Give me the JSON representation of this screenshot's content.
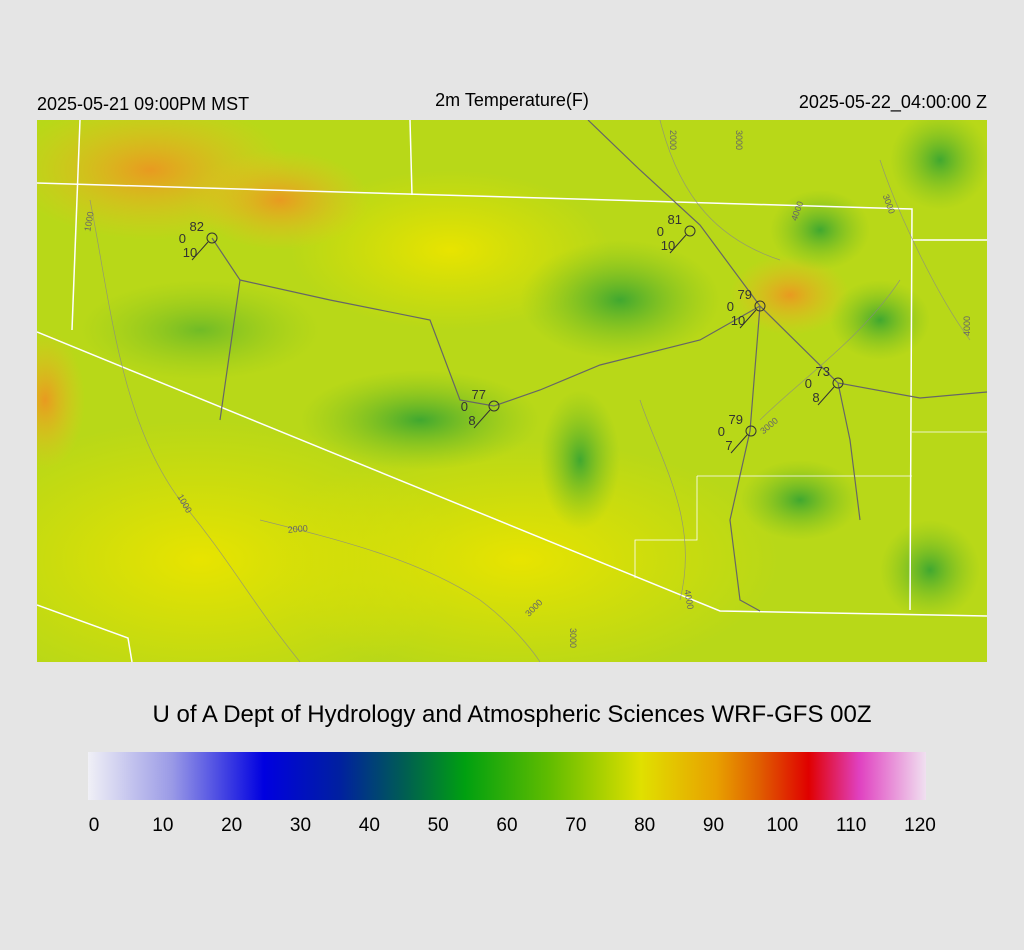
{
  "header": {
    "local_time": "2025-05-21 09:00PM MST",
    "title": "2m Temperature(F)",
    "valid_time": "2025-05-22_04:00:00 Z"
  },
  "stations": [
    {
      "temperature": 82,
      "dewpoint": 0,
      "wind": 10
    },
    {
      "temperature": 81,
      "dewpoint": 0,
      "wind": 10
    },
    {
      "temperature": 79,
      "dewpoint": 0,
      "wind": 10
    },
    {
      "temperature": 73,
      "dewpoint": 0,
      "wind": 8
    },
    {
      "temperature": 77,
      "dewpoint": 0,
      "wind": 8
    },
    {
      "temperature": 79,
      "dewpoint": 0,
      "wind": 7
    }
  ],
  "contour_labels": [
    "1000",
    "2000",
    "3000",
    "4000",
    "3000",
    "4000",
    "3000",
    "1000",
    "2000",
    "3000",
    "3000",
    "4000"
  ],
  "credit": "U of A Dept of Hydrology and Atmospheric Sciences WRF-GFS 00Z",
  "colorbar": {
    "range": [
      0,
      120
    ],
    "ticks": [
      0,
      10,
      20,
      30,
      40,
      50,
      60,
      70,
      80,
      90,
      100,
      110,
      120
    ]
  }
}
